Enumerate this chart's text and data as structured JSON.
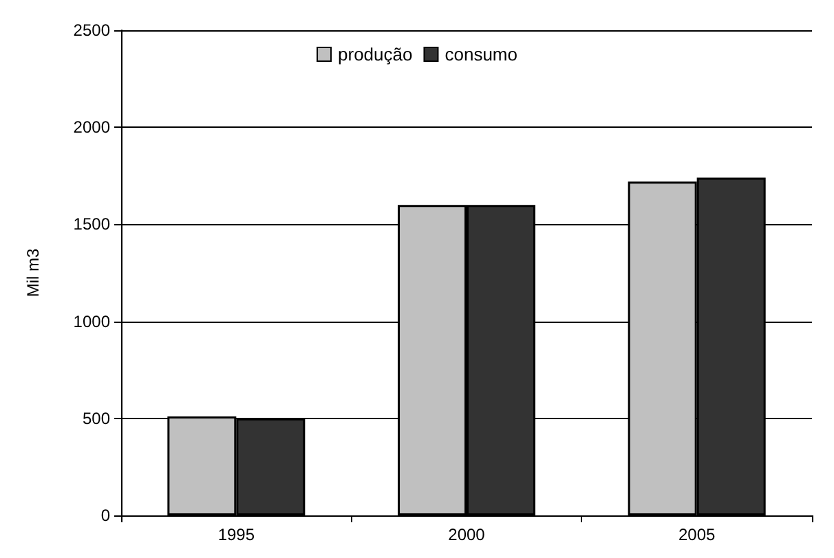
{
  "chart_data": {
    "type": "bar",
    "ylabel": "Mil m3",
    "categories": [
      "1995",
      "2000",
      "2005"
    ],
    "series": [
      {
        "name": "produção",
        "color": "#c0c0c0",
        "values": [
          510,
          1600,
          1720
        ]
      },
      {
        "name": "consumo",
        "color": "#333333",
        "values": [
          500,
          1600,
          1740
        ]
      }
    ],
    "ylim": [
      0,
      2500
    ],
    "yticks": [
      0,
      500,
      1000,
      1500,
      2000,
      2500
    ],
    "grid": "y",
    "legend": "top"
  }
}
